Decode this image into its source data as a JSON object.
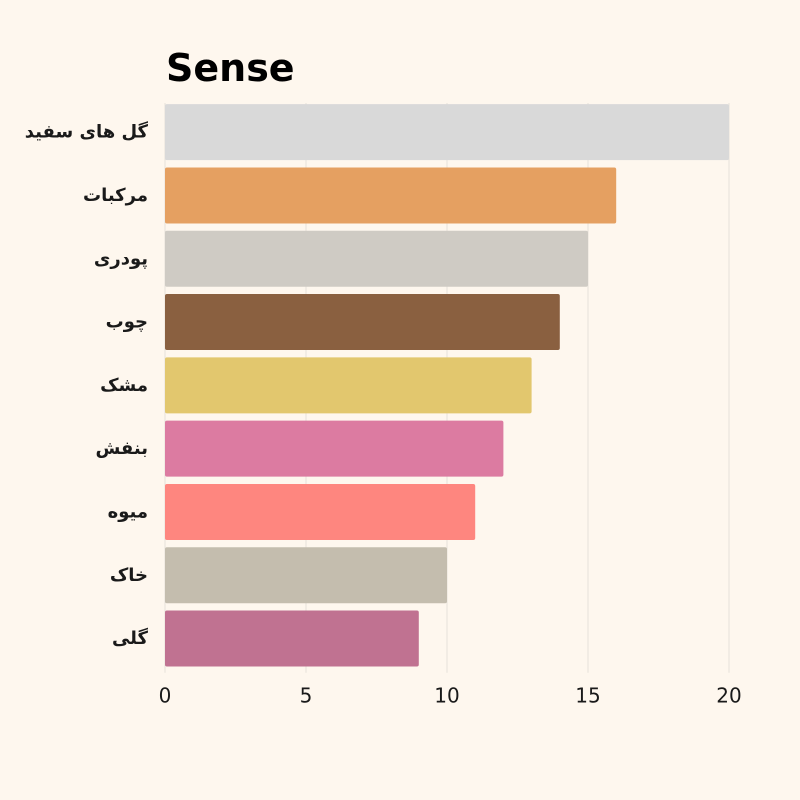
{
  "chart_data": {
    "type": "bar",
    "orientation": "horizontal",
    "title": "Sense",
    "xlabel": "",
    "ylabel": "",
    "categories": [
      "گل های سفید",
      "مرکبات",
      "پودری",
      "چوب",
      "مشک",
      "بنفش",
      "میوه",
      "خاک",
      "گلی"
    ],
    "values": [
      20,
      16,
      15,
      14,
      13,
      12,
      11,
      10,
      9
    ],
    "colors": [
      "#D9D9D9",
      "#E5A061",
      "#CFCBC4",
      "#8A6040",
      "#E2C76E",
      "#DC7BA1",
      "#FE867F",
      "#C4BDAE",
      "#C07291"
    ],
    "xlim": [
      0,
      20
    ],
    "xticks": [
      "0",
      "5",
      "10",
      "15",
      "20"
    ],
    "grid": "vertical",
    "background": "#FEF7EE"
  }
}
